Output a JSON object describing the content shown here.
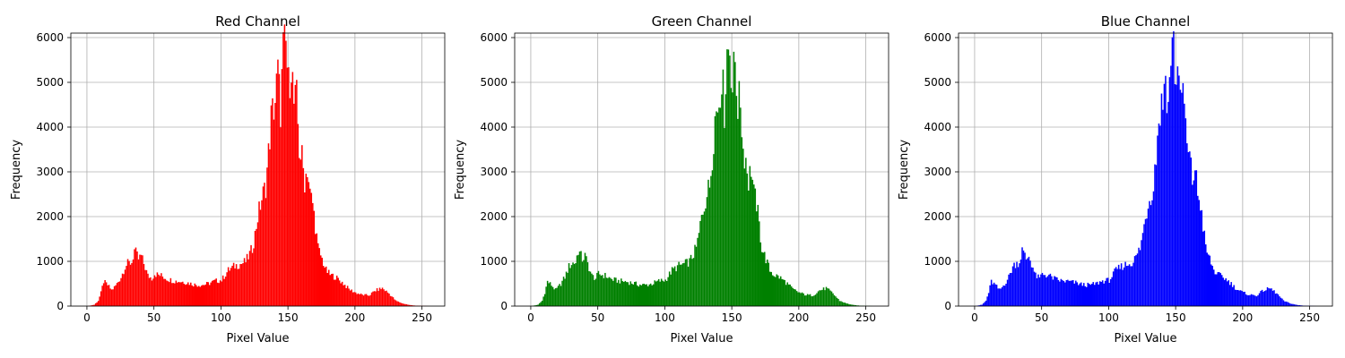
{
  "chart_data": [
    {
      "type": "bar",
      "title": "Red Channel",
      "xlabel": "Pixel Value",
      "ylabel": "Frequency",
      "color": "#ff0000",
      "xlim": [
        -12,
        267
      ],
      "ylim": [
        0,
        6100
      ],
      "xticks": [
        0,
        50,
        100,
        150,
        200,
        250
      ],
      "yticks": [
        0,
        1000,
        2000,
        3000,
        4000,
        5000,
        6000
      ],
      "grid": true,
      "anchors": [
        [
          0,
          0
        ],
        [
          5,
          30
        ],
        [
          8,
          120
        ],
        [
          10,
          300
        ],
        [
          12,
          550
        ],
        [
          15,
          470
        ],
        [
          18,
          360
        ],
        [
          20,
          420
        ],
        [
          22,
          500
        ],
        [
          25,
          650
        ],
        [
          28,
          880
        ],
        [
          30,
          950
        ],
        [
          33,
          980
        ],
        [
          35,
          1250
        ],
        [
          38,
          1050
        ],
        [
          40,
          1120
        ],
        [
          42,
          950
        ],
        [
          45,
          680
        ],
        [
          48,
          620
        ],
        [
          50,
          720
        ],
        [
          55,
          680
        ],
        [
          60,
          600
        ],
        [
          65,
          560
        ],
        [
          70,
          550
        ],
        [
          75,
          520
        ],
        [
          80,
          480
        ],
        [
          85,
          470
        ],
        [
          90,
          500
        ],
        [
          95,
          560
        ],
        [
          100,
          580
        ],
        [
          105,
          800
        ],
        [
          110,
          900
        ],
        [
          115,
          950
        ],
        [
          118,
          1000
        ],
        [
          120,
          1100
        ],
        [
          123,
          1300
        ],
        [
          125,
          1600
        ],
        [
          127,
          2000
        ],
        [
          130,
          2400
        ],
        [
          133,
          2700
        ],
        [
          135,
          3400
        ],
        [
          137,
          4200
        ],
        [
          140,
          4600
        ],
        [
          142,
          5200
        ],
        [
          144,
          4400
        ],
        [
          146,
          5700
        ],
        [
          148,
          5800
        ],
        [
          150,
          4900
        ],
        [
          152,
          5500
        ],
        [
          154,
          4500
        ],
        [
          156,
          4600
        ],
        [
          158,
          3500
        ],
        [
          160,
          3300
        ],
        [
          162,
          2800
        ],
        [
          164,
          3100
        ],
        [
          166,
          2500
        ],
        [
          168,
          2300
        ],
        [
          170,
          1800
        ],
        [
          172,
          1300
        ],
        [
          175,
          1050
        ],
        [
          178,
          800
        ],
        [
          181,
          700
        ],
        [
          185,
          650
        ],
        [
          190,
          530
        ],
        [
          195,
          380
        ],
        [
          200,
          300
        ],
        [
          205,
          250
        ],
        [
          210,
          240
        ],
        [
          215,
          350
        ],
        [
          220,
          400
        ],
        [
          225,
          280
        ],
        [
          230,
          120
        ],
        [
          235,
          60
        ],
        [
          240,
          25
        ],
        [
          245,
          10
        ],
        [
          250,
          5
        ],
        [
          255,
          0
        ]
      ]
    },
    {
      "type": "bar",
      "title": "Green Channel",
      "xlabel": "Pixel Value",
      "ylabel": "Frequency",
      "color": "#008000",
      "xlim": [
        -12,
        267
      ],
      "ylim": [
        0,
        6100
      ],
      "xticks": [
        0,
        50,
        100,
        150,
        200,
        250
      ],
      "yticks": [
        0,
        1000,
        2000,
        3000,
        4000,
        5000,
        6000
      ],
      "grid": true,
      "anchors": [
        [
          0,
          0
        ],
        [
          5,
          30
        ],
        [
          8,
          120
        ],
        [
          10,
          300
        ],
        [
          12,
          550
        ],
        [
          15,
          470
        ],
        [
          18,
          360
        ],
        [
          20,
          420
        ],
        [
          22,
          500
        ],
        [
          25,
          650
        ],
        [
          28,
          880
        ],
        [
          30,
          950
        ],
        [
          33,
          980
        ],
        [
          35,
          1250
        ],
        [
          38,
          1050
        ],
        [
          40,
          1120
        ],
        [
          42,
          950
        ],
        [
          45,
          680
        ],
        [
          48,
          620
        ],
        [
          50,
          720
        ],
        [
          55,
          680
        ],
        [
          60,
          600
        ],
        [
          65,
          560
        ],
        [
          70,
          550
        ],
        [
          75,
          520
        ],
        [
          80,
          480
        ],
        [
          85,
          470
        ],
        [
          90,
          500
        ],
        [
          95,
          560
        ],
        [
          100,
          580
        ],
        [
          105,
          800
        ],
        [
          110,
          900
        ],
        [
          115,
          950
        ],
        [
          118,
          1000
        ],
        [
          120,
          1100
        ],
        [
          123,
          1300
        ],
        [
          125,
          1600
        ],
        [
          127,
          2000
        ],
        [
          130,
          2400
        ],
        [
          133,
          2700
        ],
        [
          135,
          3400
        ],
        [
          137,
          4200
        ],
        [
          140,
          4600
        ],
        [
          142,
          5200
        ],
        [
          144,
          4400
        ],
        [
          146,
          5700
        ],
        [
          148,
          5800
        ],
        [
          150,
          4900
        ],
        [
          152,
          5500
        ],
        [
          154,
          4500
        ],
        [
          156,
          4600
        ],
        [
          158,
          3500
        ],
        [
          160,
          3300
        ],
        [
          162,
          2800
        ],
        [
          164,
          3100
        ],
        [
          166,
          2500
        ],
        [
          168,
          2300
        ],
        [
          170,
          1800
        ],
        [
          172,
          1300
        ],
        [
          175,
          1050
        ],
        [
          178,
          800
        ],
        [
          181,
          700
        ],
        [
          185,
          650
        ],
        [
          190,
          530
        ],
        [
          195,
          380
        ],
        [
          200,
          300
        ],
        [
          205,
          250
        ],
        [
          210,
          240
        ],
        [
          215,
          350
        ],
        [
          220,
          400
        ],
        [
          225,
          280
        ],
        [
          230,
          120
        ],
        [
          235,
          60
        ],
        [
          240,
          25
        ],
        [
          245,
          10
        ],
        [
          250,
          5
        ],
        [
          255,
          0
        ]
      ]
    },
    {
      "type": "bar",
      "title": "Blue Channel",
      "xlabel": "Pixel Value",
      "ylabel": "Frequency",
      "color": "#0000ff",
      "xlim": [
        -12,
        267
      ],
      "ylim": [
        0,
        6100
      ],
      "xticks": [
        0,
        50,
        100,
        150,
        200,
        250
      ],
      "yticks": [
        0,
        1000,
        2000,
        3000,
        4000,
        5000,
        6000
      ],
      "grid": true,
      "anchors": [
        [
          0,
          0
        ],
        [
          5,
          30
        ],
        [
          8,
          120
        ],
        [
          10,
          300
        ],
        [
          12,
          550
        ],
        [
          15,
          470
        ],
        [
          18,
          360
        ],
        [
          20,
          420
        ],
        [
          22,
          500
        ],
        [
          25,
          650
        ],
        [
          28,
          880
        ],
        [
          30,
          950
        ],
        [
          33,
          980
        ],
        [
          35,
          1250
        ],
        [
          38,
          1050
        ],
        [
          40,
          1120
        ],
        [
          42,
          950
        ],
        [
          45,
          680
        ],
        [
          48,
          620
        ],
        [
          50,
          720
        ],
        [
          55,
          680
        ],
        [
          60,
          600
        ],
        [
          65,
          560
        ],
        [
          70,
          550
        ],
        [
          75,
          520
        ],
        [
          80,
          480
        ],
        [
          85,
          470
        ],
        [
          90,
          500
        ],
        [
          95,
          560
        ],
        [
          100,
          580
        ],
        [
          105,
          800
        ],
        [
          110,
          900
        ],
        [
          115,
          950
        ],
        [
          118,
          1000
        ],
        [
          120,
          1100
        ],
        [
          123,
          1300
        ],
        [
          125,
          1600
        ],
        [
          127,
          2000
        ],
        [
          130,
          2400
        ],
        [
          133,
          2700
        ],
        [
          135,
          3400
        ],
        [
          137,
          4200
        ],
        [
          140,
          4600
        ],
        [
          142,
          5200
        ],
        [
          144,
          4400
        ],
        [
          146,
          5700
        ],
        [
          148,
          5800
        ],
        [
          150,
          4900
        ],
        [
          152,
          5500
        ],
        [
          154,
          4500
        ],
        [
          156,
          4600
        ],
        [
          158,
          3500
        ],
        [
          160,
          3300
        ],
        [
          162,
          2800
        ],
        [
          164,
          3100
        ],
        [
          166,
          2500
        ],
        [
          168,
          2300
        ],
        [
          170,
          1800
        ],
        [
          172,
          1300
        ],
        [
          175,
          1050
        ],
        [
          178,
          800
        ],
        [
          181,
          700
        ],
        [
          185,
          650
        ],
        [
          190,
          530
        ],
        [
          195,
          380
        ],
        [
          200,
          300
        ],
        [
          205,
          250
        ],
        [
          210,
          240
        ],
        [
          215,
          350
        ],
        [
          220,
          400
        ],
        [
          225,
          280
        ],
        [
          230,
          120
        ],
        [
          235,
          60
        ],
        [
          240,
          25
        ],
        [
          245,
          10
        ],
        [
          250,
          5
        ],
        [
          255,
          0
        ]
      ]
    }
  ]
}
